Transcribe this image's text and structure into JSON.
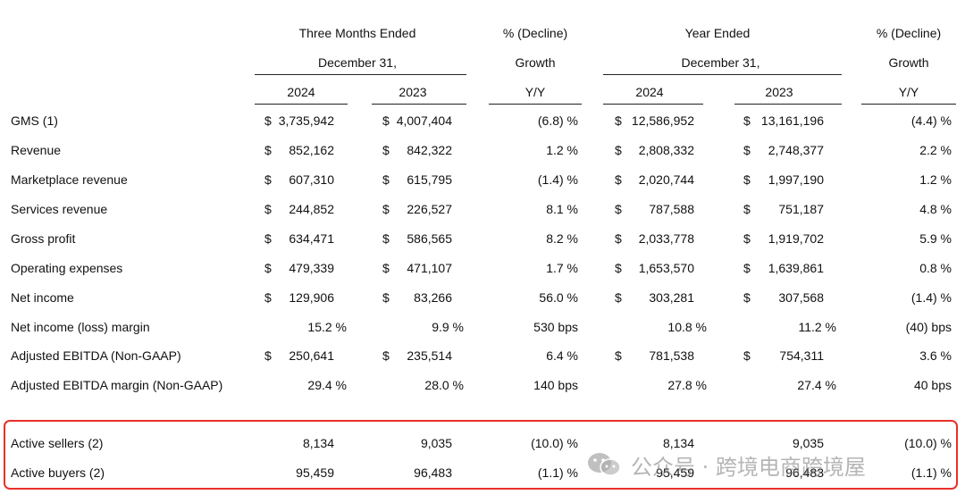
{
  "headers": {
    "three_months_line1": "Three Months Ended",
    "three_months_line2": "December 31,",
    "growth1_line1": "% (Decline)",
    "growth1_line2": "Growth",
    "growth1_line3": "Y/Y",
    "year_line1": "Year Ended",
    "year_line2": "December 31,",
    "growth2_line1": "% (Decline)",
    "growth2_line2": "Growth",
    "growth2_line3": "Y/Y",
    "q_2024": "2024",
    "q_2023": "2023",
    "y_2024": "2024",
    "y_2023": "2023"
  },
  "rows": [
    {
      "label": "GMS (1)",
      "d1": "$",
      "q24": "3,735,942",
      "d2": "$",
      "q23": "4,007,404",
      "g1": "(6.8) %",
      "d3": "$",
      "y24": "12,586,952",
      "d4": "$",
      "y23": "13,161,196",
      "g2": "(4.4) %"
    },
    {
      "label": "Revenue",
      "d1": "$",
      "q24": "852,162",
      "d2": "$",
      "q23": "842,322",
      "g1": "1.2 %",
      "d3": "$",
      "y24": "2,808,332",
      "d4": "$",
      "y23": "2,748,377",
      "g2": "2.2 %"
    },
    {
      "label": "Marketplace revenue",
      "d1": "$",
      "q24": "607,310",
      "d2": "$",
      "q23": "615,795",
      "g1": "(1.4) %",
      "d3": "$",
      "y24": "2,020,744",
      "d4": "$",
      "y23": "1,997,190",
      "g2": "1.2 %"
    },
    {
      "label": "Services revenue",
      "d1": "$",
      "q24": "244,852",
      "d2": "$",
      "q23": "226,527",
      "g1": "8.1 %",
      "d3": "$",
      "y24": "787,588",
      "d4": "$",
      "y23": "751,187",
      "g2": "4.8 %"
    },
    {
      "label": "Gross profit",
      "d1": "$",
      "q24": "634,471",
      "d2": "$",
      "q23": "586,565",
      "g1": "8.2 %",
      "d3": "$",
      "y24": "2,033,778",
      "d4": "$",
      "y23": "1,919,702",
      "g2": "5.9 %"
    },
    {
      "label": "Operating expenses",
      "d1": "$",
      "q24": "479,339",
      "d2": "$",
      "q23": "471,107",
      "g1": "1.7 %",
      "d3": "$",
      "y24": "1,653,570",
      "d4": "$",
      "y23": "1,639,861",
      "g2": "0.8 %"
    },
    {
      "label": "Net income",
      "d1": "$",
      "q24": "129,906",
      "d2": "$",
      "q23": "83,266",
      "g1": "56.0 %",
      "d3": "$",
      "y24": "303,281",
      "d4": "$",
      "y23": "307,568",
      "g2": "(1.4) %"
    },
    {
      "label": "Net income (loss) margin",
      "d1": "",
      "q24": "15.2 %",
      "d2": "",
      "q23": "9.9 %",
      "g1": "530 bps",
      "d3": "",
      "y24": "10.8 %",
      "d4": "",
      "y23": "11.2 %",
      "g2": "(40) bps"
    },
    {
      "label": "Adjusted EBITDA (Non-GAAP)",
      "d1": "$",
      "q24": "250,641",
      "d2": "$",
      "q23": "235,514",
      "g1": "6.4 %",
      "d3": "$",
      "y24": "781,538",
      "d4": "$",
      "y23": "754,311",
      "g2": "3.6 %"
    },
    {
      "label": "Adjusted EBITDA margin (Non-GAAP)",
      "d1": "",
      "q24": "29.4 %",
      "d2": "",
      "q23": "28.0 %",
      "g1": "140 bps",
      "d3": "",
      "y24": "27.8 %",
      "d4": "",
      "y23": "27.4 %",
      "g2": "40 bps"
    },
    {
      "label": "Active sellers (2)",
      "d1": "",
      "q24": "8,134",
      "d2": "",
      "q23": "9,035",
      "g1": "(10.0) %",
      "d3": "",
      "y24": "8,134",
      "d4": "",
      "y23": "9,035",
      "g2": "(10.0) %"
    },
    {
      "label": "Active buyers (2)",
      "d1": "",
      "q24": "95,459",
      "d2": "",
      "q23": "96,483",
      "g1": "(1.1) %",
      "d3": "",
      "y24": "95,459",
      "d4": "",
      "y23": "96,483",
      "g2": "(1.1) %"
    }
  ],
  "watermark": {
    "text": "公众号 · 跨境电商跨境屋",
    "icon": "wechat-icon"
  },
  "colors": {
    "highlight": "#e8302a",
    "text": "#111111",
    "rule": "#222222"
  }
}
